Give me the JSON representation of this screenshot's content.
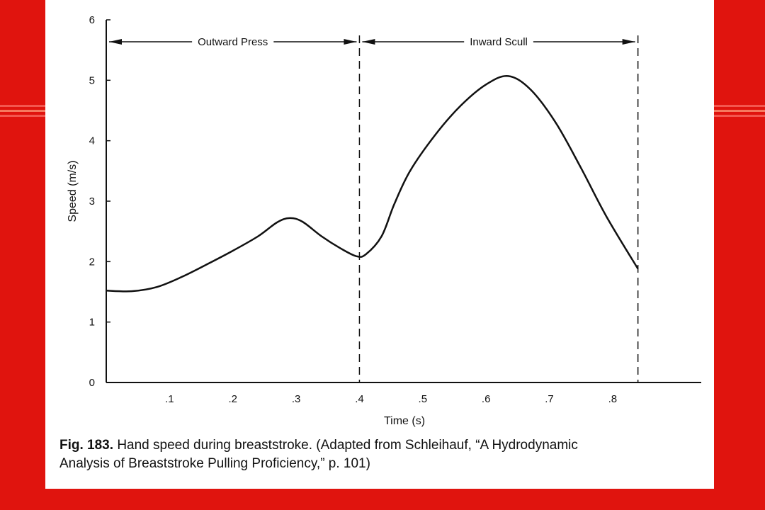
{
  "chart_data": {
    "type": "line",
    "xlabel": "Time (s)",
    "ylabel": "Speed (m/s)",
    "xlim": [
      0,
      0.94
    ],
    "ylim": [
      0,
      6
    ],
    "x_ticks": [
      {
        "value": 0.1,
        "label": ".1"
      },
      {
        "value": 0.2,
        "label": ".2"
      },
      {
        "value": 0.3,
        "label": ".3"
      },
      {
        "value": 0.4,
        "label": ".4"
      },
      {
        "value": 0.5,
        "label": ".5"
      },
      {
        "value": 0.6,
        "label": ".6"
      },
      {
        "value": 0.7,
        "label": ".7"
      },
      {
        "value": 0.8,
        "label": ".8"
      }
    ],
    "y_ticks": [
      {
        "value": 0,
        "label": "0"
      },
      {
        "value": 1,
        "label": "1"
      },
      {
        "value": 2,
        "label": "2"
      },
      {
        "value": 3,
        "label": "3"
      },
      {
        "value": 4,
        "label": "4"
      },
      {
        "value": 5,
        "label": "5"
      },
      {
        "value": 6,
        "label": "6"
      }
    ],
    "series": [
      {
        "points": [
          [
            0.0,
            1.52
          ],
          [
            0.04,
            1.51
          ],
          [
            0.08,
            1.58
          ],
          [
            0.12,
            1.75
          ],
          [
            0.16,
            1.96
          ],
          [
            0.2,
            2.18
          ],
          [
            0.24,
            2.42
          ],
          [
            0.27,
            2.65
          ],
          [
            0.29,
            2.72
          ],
          [
            0.31,
            2.66
          ],
          [
            0.34,
            2.42
          ],
          [
            0.37,
            2.22
          ],
          [
            0.395,
            2.09
          ],
          [
            0.41,
            2.12
          ],
          [
            0.435,
            2.42
          ],
          [
            0.455,
            2.95
          ],
          [
            0.48,
            3.5
          ],
          [
            0.52,
            4.1
          ],
          [
            0.56,
            4.58
          ],
          [
            0.6,
            4.93
          ],
          [
            0.635,
            5.07
          ],
          [
            0.67,
            4.85
          ],
          [
            0.71,
            4.3
          ],
          [
            0.75,
            3.55
          ],
          [
            0.79,
            2.75
          ],
          [
            0.84,
            1.88
          ]
        ]
      }
    ],
    "phases": [
      {
        "label": "Outward Press",
        "start": 0.0,
        "end": 0.4
      },
      {
        "label": "Inward Scull",
        "start": 0.4,
        "end": 0.84
      }
    ],
    "grid": false
  },
  "caption": {
    "fig_label": "Fig. 183.",
    "line1": "Hand speed during breaststroke. (Adapted from Schleihauf, “A Hydrodynamic",
    "line2": "Analysis of Breaststroke Pulling Proficiency,” p. 101)"
  }
}
